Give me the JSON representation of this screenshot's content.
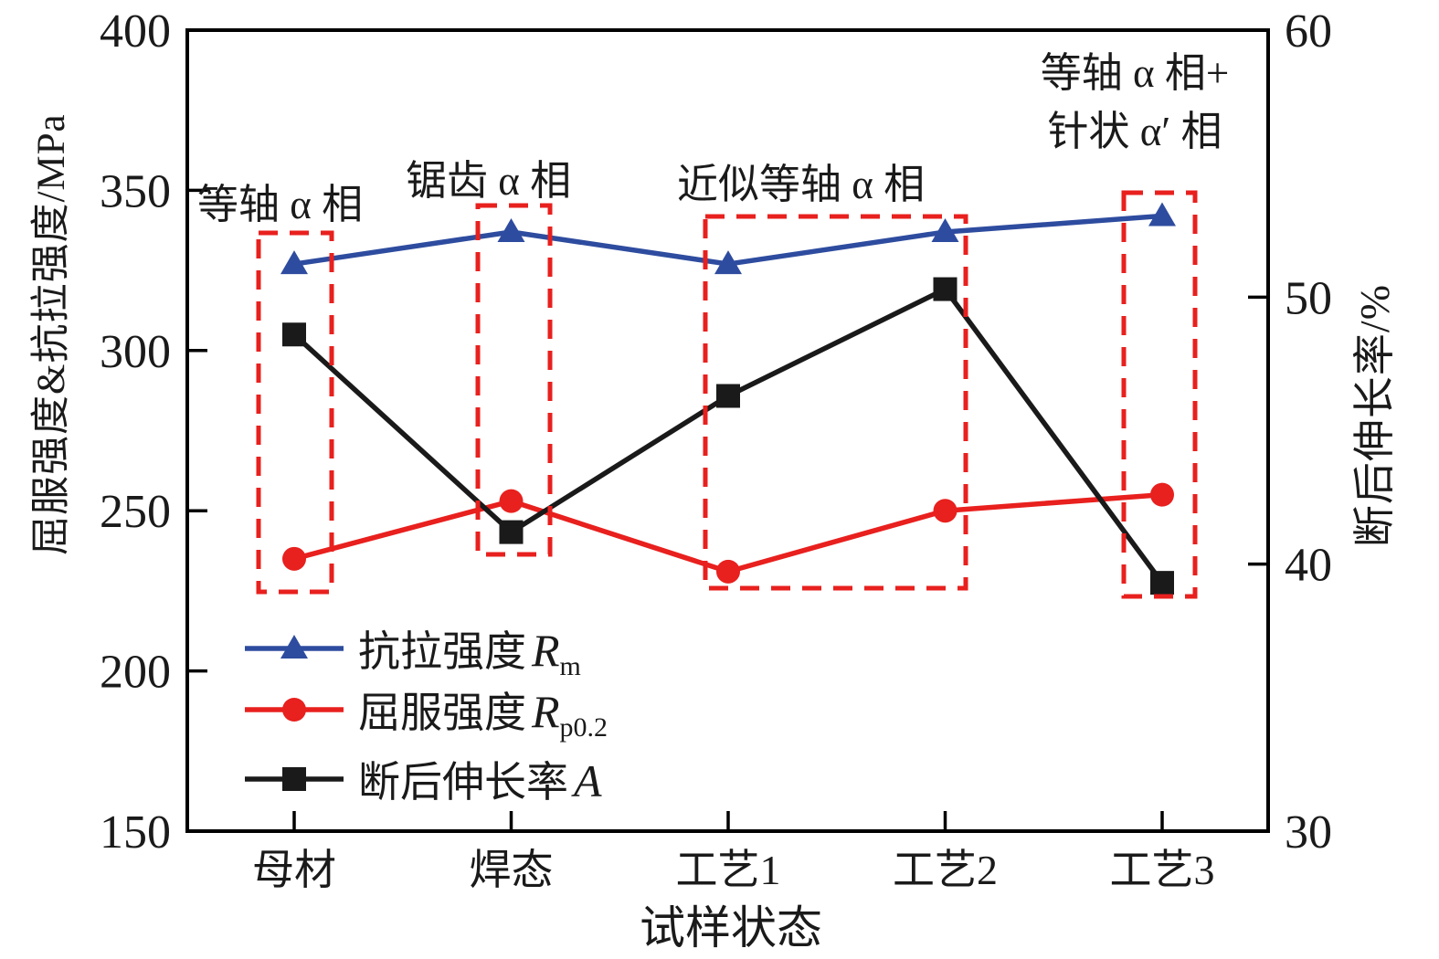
{
  "chart_data": {
    "type": "line",
    "x_axis_label": "试样状态",
    "categories": [
      "母材",
      "焊态",
      "工艺1",
      "工艺2",
      "工艺3"
    ],
    "y_left": {
      "label": "屈服强度&抗拉强度/MPa",
      "min": 150,
      "max": 400,
      "ticks": [
        400,
        350,
        300,
        250,
        200,
        150
      ]
    },
    "y_right": {
      "label": "断后伸长率/%",
      "min": 30,
      "max": 60,
      "ticks": [
        60,
        50,
        40,
        30
      ]
    },
    "grid": false,
    "legend_position": "inside-lower-left",
    "series": [
      {
        "name": "抗拉强度 Rm",
        "axis": "left",
        "unit": "MPa",
        "color": "#2E4C9F",
        "marker": "triangle",
        "values": [
          327,
          337,
          327,
          337,
          342
        ]
      },
      {
        "name": "屈服强度 Rp0.2",
        "axis": "left",
        "unit": "MPa",
        "color": "#E8201E",
        "marker": "circle",
        "values": [
          235,
          253,
          231,
          250,
          255
        ]
      },
      {
        "name": "断后伸长率 A",
        "axis": "right",
        "unit": "%",
        "color": "#1A1A1A",
        "marker": "square",
        "values": [
          48.6,
          41.2,
          46.3,
          50.3,
          39.3
        ]
      }
    ],
    "annotations": [
      {
        "text": "等轴 α 相",
        "applies_to": [
          "母材"
        ]
      },
      {
        "text": "锯齿 α 相",
        "applies_to": [
          "焊态"
        ]
      },
      {
        "text": "近似等轴 α 相",
        "applies_to": [
          "工艺1",
          "工艺2"
        ]
      },
      {
        "text": "等轴 α 相+",
        "text2": "针状 α′ 相",
        "applies_to": [
          "工艺3"
        ]
      }
    ],
    "highlight_box_color": "#E8201E",
    "axis_color": "#000000"
  },
  "legend": {
    "items": [
      {
        "prefix": "抗拉强度",
        "sym": "R",
        "sub": "m"
      },
      {
        "prefix": "屈服强度",
        "sym": "R",
        "sub": "p0.2"
      },
      {
        "prefix": "断后伸长率",
        "sym": "A",
        "sub": ""
      }
    ]
  }
}
